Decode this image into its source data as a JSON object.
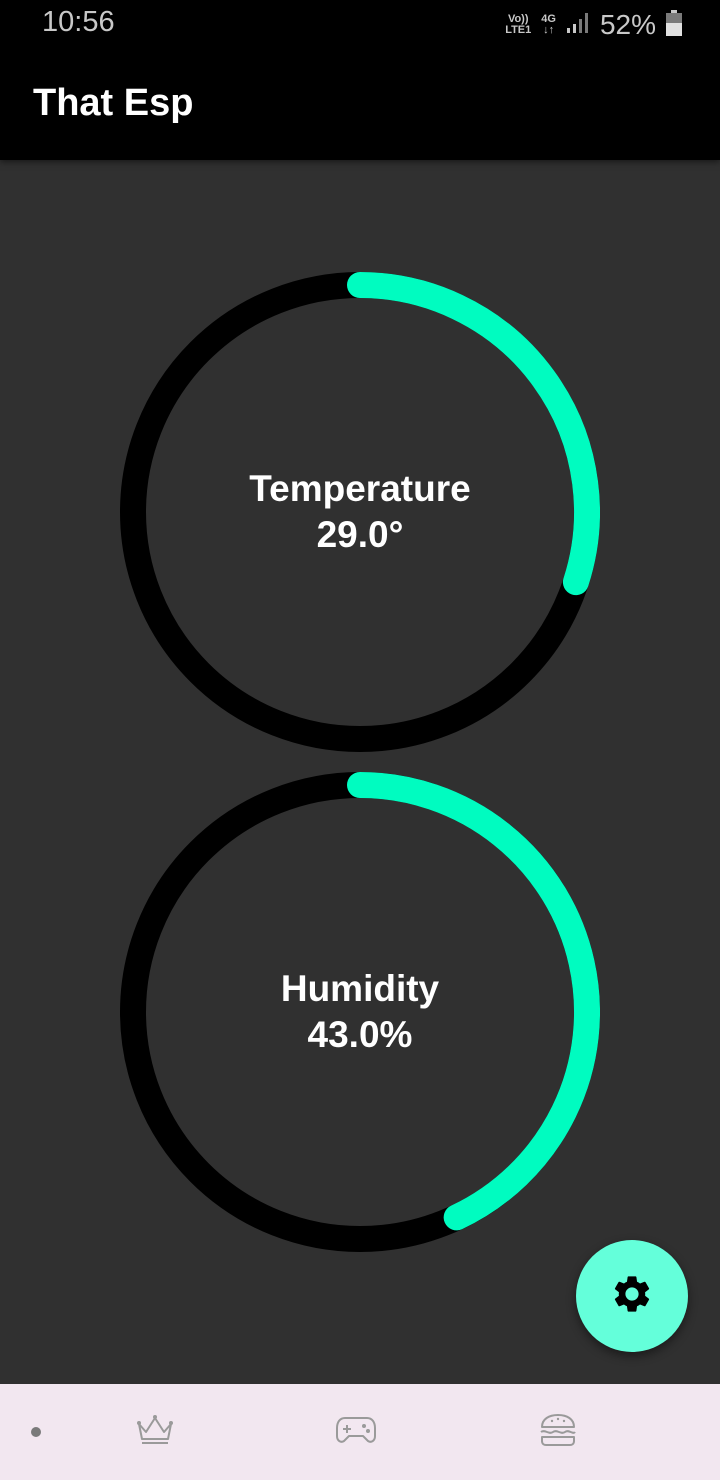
{
  "status_bar": {
    "time": "10:56",
    "volte_top": "Vo))",
    "volte_bottom": "LTE1",
    "network_top": "4G",
    "network_bottom": "↓↑",
    "battery": "52%",
    "icons": [
      "signal-icon",
      "battery-icon"
    ]
  },
  "app_bar": {
    "title": "That Esp"
  },
  "gauges": [
    {
      "label": "Temperature",
      "value_text": "29.0°",
      "fraction": 0.3,
      "color": "#00fcc0",
      "track_color": "#000000"
    },
    {
      "label": "Humidity",
      "value_text": "43.0%",
      "fraction": 0.43,
      "color": "#00fcc0",
      "track_color": "#000000"
    }
  ],
  "fab": {
    "icon": "gear-icon",
    "color": "#64ffda"
  },
  "bottom_nav": {
    "items": [
      {
        "icon": "dot-icon"
      },
      {
        "icon": "crown-icon"
      },
      {
        "icon": "gamepad-icon"
      },
      {
        "icon": "burger-icon"
      }
    ]
  }
}
